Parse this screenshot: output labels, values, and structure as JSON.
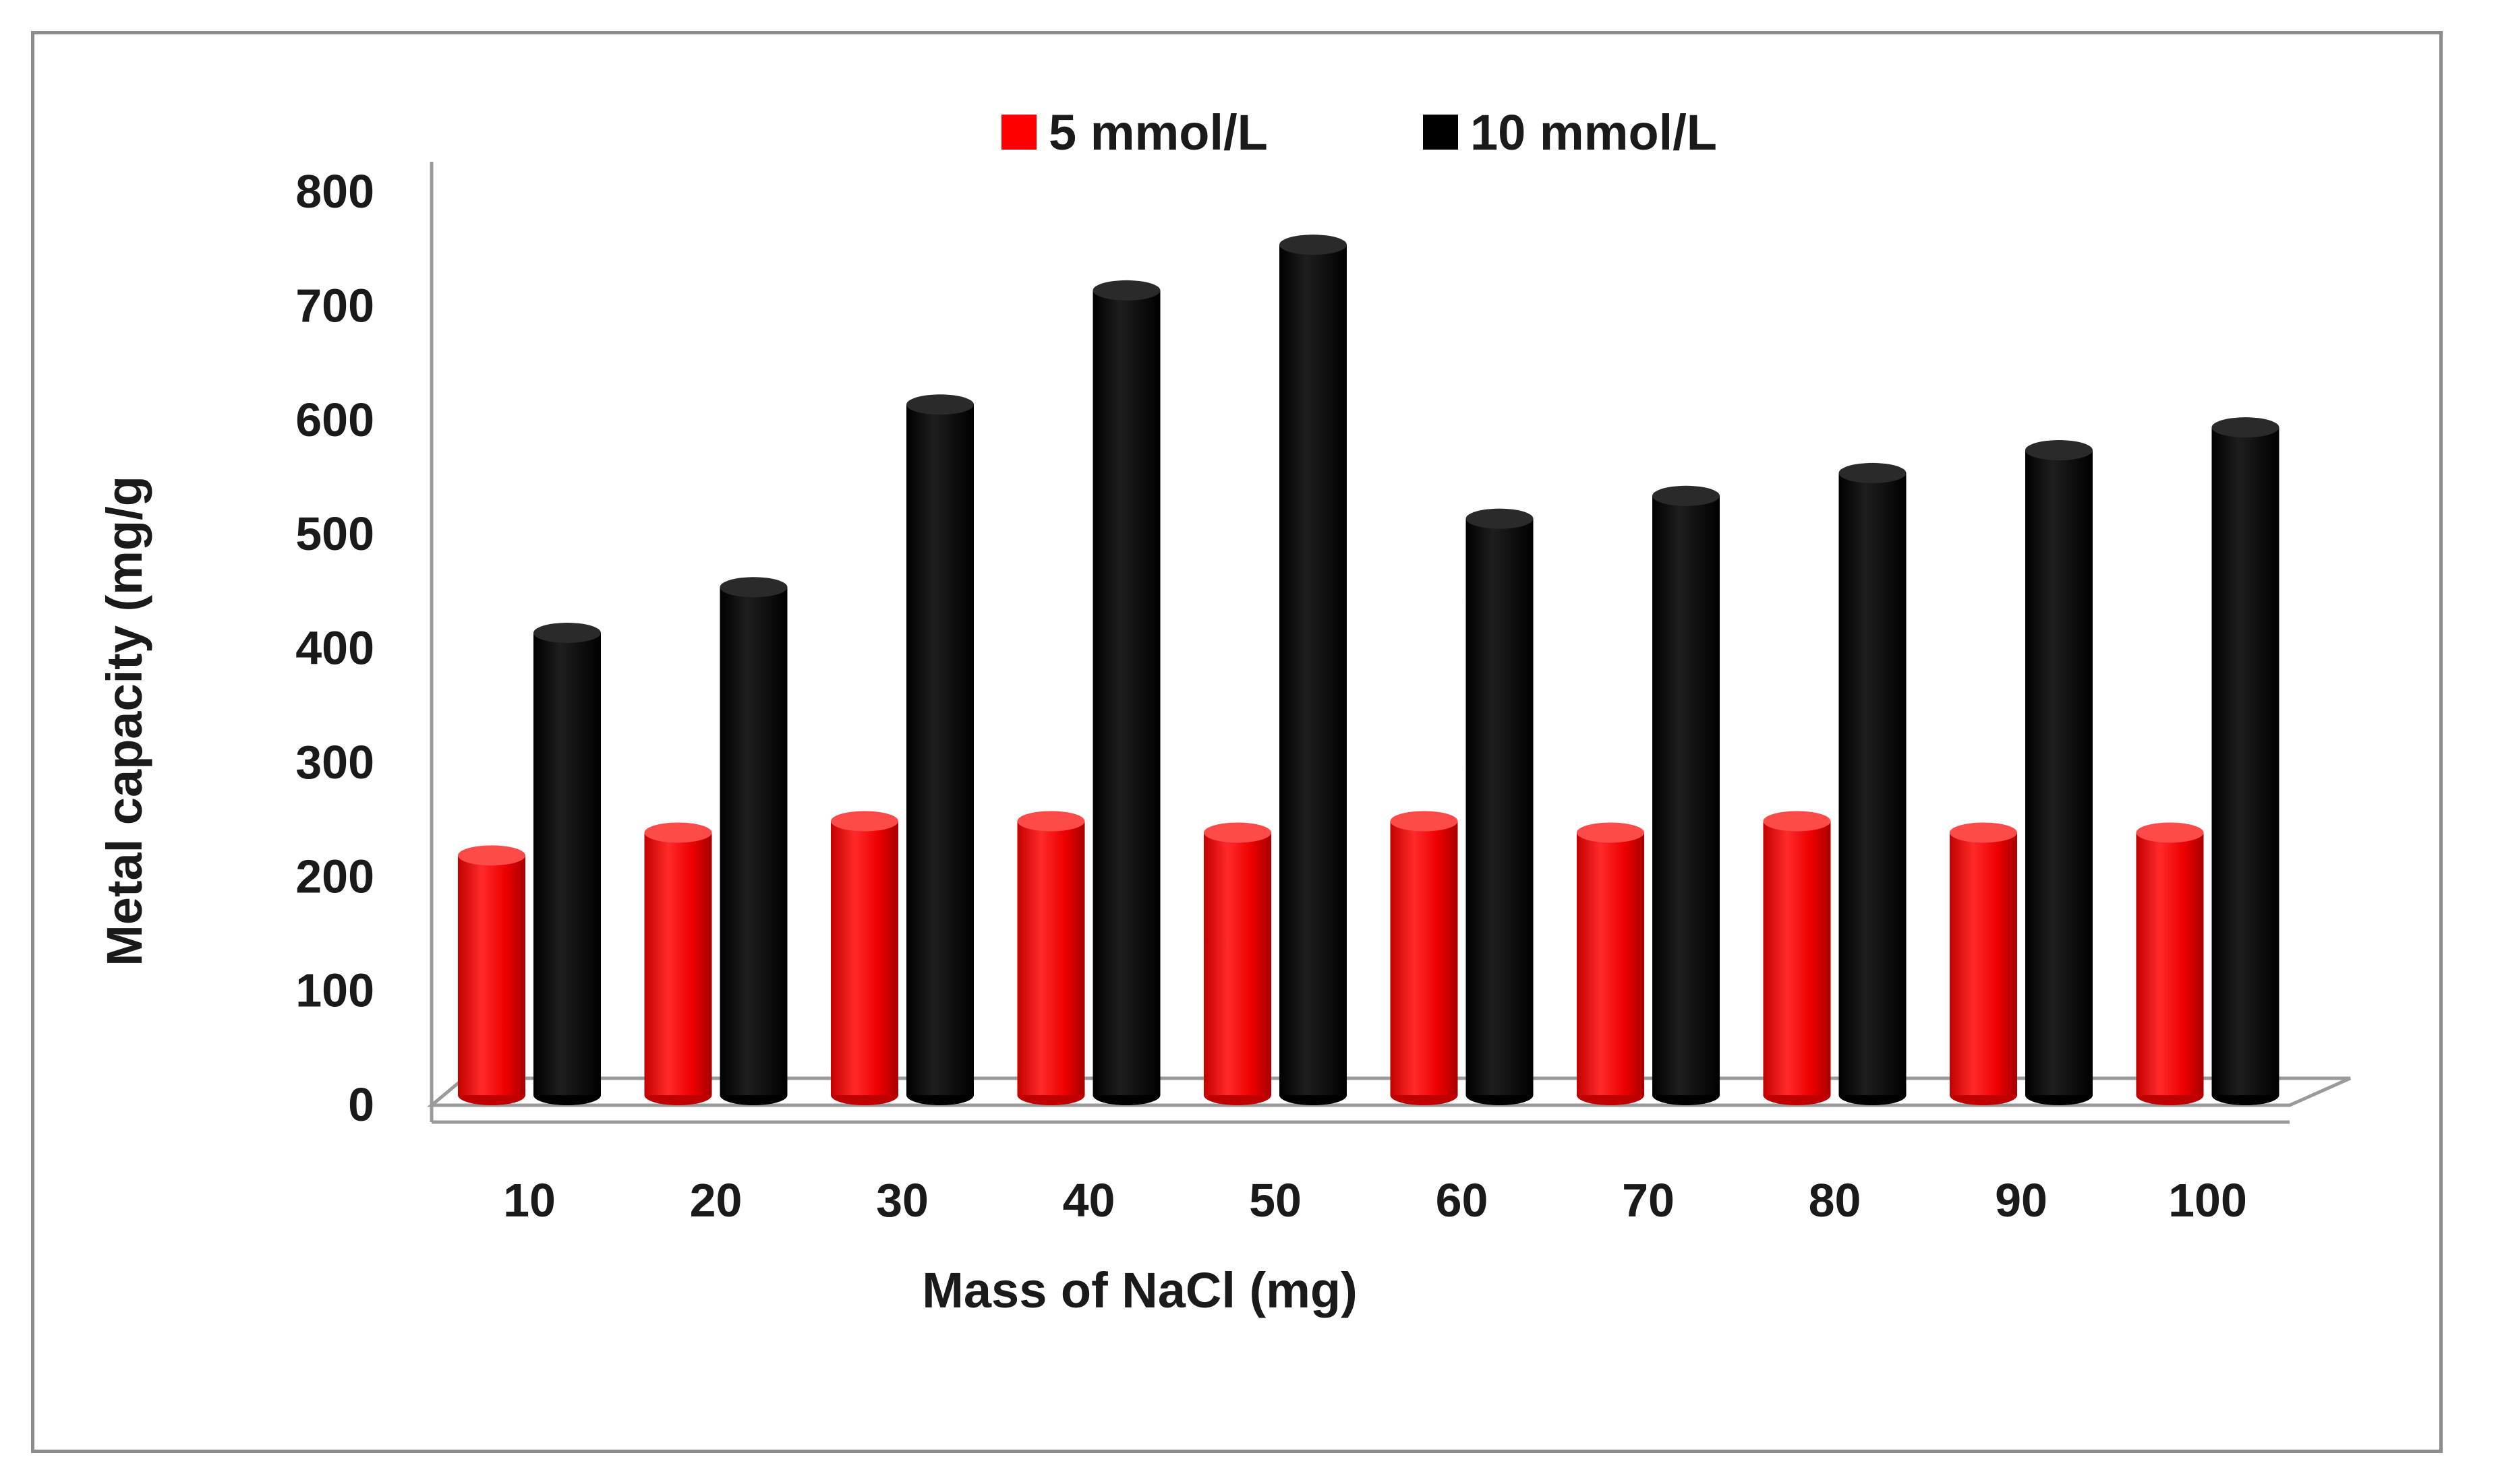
{
  "chart_data": {
    "type": "bar",
    "style": "3d-cylinder",
    "title": "",
    "xlabel": "Mass of NaCl (mg)",
    "ylabel": "Metal capacity (mg/g",
    "categories": [
      "10",
      "20",
      "30",
      "40",
      "50",
      "60",
      "70",
      "80",
      "90",
      "100"
    ],
    "series": [
      {
        "name": "5 mmol/L",
        "color": "#ff0000",
        "values": [
          210,
          230,
          240,
          240,
          230,
          240,
          230,
          240,
          230,
          230
        ]
      },
      {
        "name": "10 mmol/L",
        "color": "#000000",
        "values": [
          405,
          445,
          605,
          705,
          745,
          505,
          525,
          545,
          565,
          585
        ]
      }
    ],
    "ylim": [
      0,
      800
    ],
    "yticks": [
      "0",
      "100",
      "200",
      "300",
      "400",
      "500",
      "600",
      "700",
      "800"
    ],
    "legend_position": "top-center",
    "grid": false
  }
}
